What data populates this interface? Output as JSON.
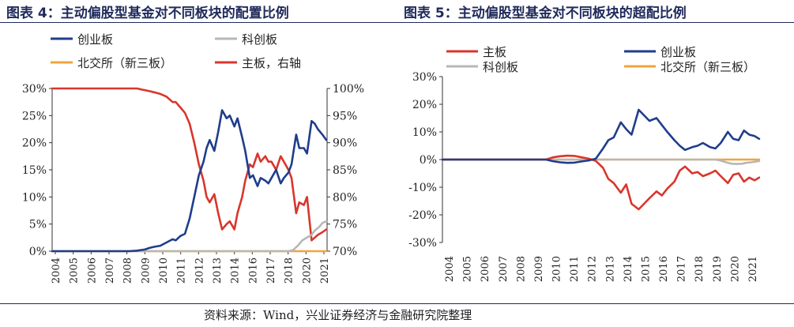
{
  "chart_data": [
    {
      "type": "line",
      "title": "图表 4：主动偏股型基金对不同板块的配置比例",
      "x_tick_labels": [
        "2004",
        "2005",
        "2006",
        "2007",
        "2008",
        "2009",
        "2010",
        "2011",
        "2012",
        "2013",
        "2014",
        "2016",
        "2017",
        "2018",
        "2020",
        "2021"
      ],
      "y_left_ticks": [
        "0%",
        "5%",
        "10%",
        "15%",
        "20%",
        "25%",
        "30%"
      ],
      "y_right_ticks": [
        "70%",
        "75%",
        "80%",
        "85%",
        "90%",
        "95%",
        "100%"
      ],
      "ylim_left": [
        0,
        30
      ],
      "ylim_right": [
        70,
        100
      ],
      "xlim": [
        2004,
        2021.8
      ],
      "series": [
        {
          "name": "创业板",
          "color": "#1f3d8c",
          "axis": "left",
          "x": [
            2004,
            2009.0,
            2009.5,
            2010.0,
            2010.3,
            2010.6,
            2011.0,
            2011.4,
            2011.8,
            2012.0,
            2012.3,
            2012.6,
            2012.9,
            2013.2,
            2013.5,
            2013.8,
            2014.0,
            2014.2,
            2014.5,
            2014.75,
            2015.0,
            2015.3,
            2015.5,
            2015.8,
            2016.0,
            2016.3,
            2016.5,
            2016.8,
            2017.0,
            2017.3,
            2017.5,
            2017.8,
            2018.0,
            2018.2,
            2018.5,
            2018.8,
            2019.0,
            2019.3,
            2019.5,
            2019.8,
            2020.0,
            2020.3,
            2020.5,
            2020.8,
            2021.0,
            2021.2,
            2021.5,
            2021.75
          ],
          "y": [
            0,
            0,
            0.1,
            0.3,
            0.6,
            0.8,
            1.0,
            1.6,
            2.2,
            2.0,
            2.8,
            3.2,
            6.0,
            10.0,
            14.0,
            16.5,
            19.0,
            20.5,
            18.5,
            22.0,
            26.0,
            24.5,
            25.0,
            23.0,
            24.5,
            21.0,
            18.5,
            13.5,
            14.0,
            12.0,
            13.5,
            13.0,
            12.5,
            13.5,
            15.0,
            12.5,
            13.5,
            14.5,
            16.0,
            21.5,
            19.0,
            19.0,
            18.0,
            24.0,
            23.5,
            22.5,
            21.5,
            20.5
          ]
        },
        {
          "name": "科创板",
          "color": "#b7b7b7",
          "axis": "left",
          "x": [
            2004,
            2019.3,
            2019.6,
            2019.9,
            2020.2,
            2020.5,
            2020.8,
            2021.0,
            2021.3,
            2021.5,
            2021.75
          ],
          "y": [
            0,
            0,
            0.2,
            1.0,
            2.0,
            2.5,
            3.0,
            3.8,
            4.5,
            5.2,
            5.5
          ]
        },
        {
          "name": "北交所（新三板）",
          "color": "#f0a43a",
          "axis": "left",
          "x": [
            2004,
            2021.75
          ],
          "y": [
            0,
            0
          ]
        },
        {
          "name": "主板，右轴",
          "color": "#d8362c",
          "axis": "right",
          "x": [
            2004,
            2009.0,
            2009.5,
            2009.8,
            2010.0,
            2010.3,
            2010.6,
            2011.0,
            2011.4,
            2011.8,
            2012.0,
            2012.3,
            2012.6,
            2012.9,
            2013.2,
            2013.5,
            2013.8,
            2014.0,
            2014.2,
            2014.5,
            2014.75,
            2015.0,
            2015.3,
            2015.5,
            2015.8,
            2016.0,
            2016.3,
            2016.5,
            2016.8,
            2017.0,
            2017.3,
            2017.5,
            2017.8,
            2018.0,
            2018.2,
            2018.5,
            2018.8,
            2019.0,
            2019.3,
            2019.5,
            2019.8,
            2020.0,
            2020.3,
            2020.5,
            2020.8,
            2021.0,
            2021.2,
            2021.5,
            2021.75
          ],
          "y": [
            100,
            100,
            100,
            99.8,
            99.7,
            99.5,
            99.3,
            99.0,
            98.5,
            97.5,
            97.5,
            96.5,
            95.5,
            93.5,
            90.0,
            86.0,
            83.0,
            80.0,
            79.0,
            80.5,
            77.0,
            74.0,
            75.0,
            75.5,
            74.0,
            77.0,
            80.0,
            83.0,
            86.0,
            85.5,
            88.0,
            86.5,
            87.5,
            86.5,
            86.5,
            85.0,
            87.5,
            86.5,
            85.0,
            83.5,
            77.0,
            79.0,
            78.5,
            80.0,
            72.0,
            72.5,
            73.0,
            73.5,
            74.0
          ]
        }
      ]
    },
    {
      "type": "line",
      "title": "图表 5：主动偏股型基金对不同板块的超配比例",
      "x_tick_labels": [
        "2004",
        "2005",
        "2006",
        "2007",
        "2008",
        "2009",
        "2010",
        "2011",
        "2012",
        "2013",
        "2014",
        "2015",
        "2016",
        "2017",
        "2018",
        "2019",
        "2020",
        "2021"
      ],
      "y_ticks": [
        "30%",
        "20%",
        "10%",
        "0%",
        "-10%",
        "-20%",
        "-30%"
      ],
      "ylim": [
        -30,
        30
      ],
      "xlim": [
        2004,
        2021.8
      ],
      "series": [
        {
          "name": "主板",
          "color": "#d8362c",
          "x": [
            2004,
            2009.8,
            2010.2,
            2010.6,
            2011.0,
            2011.4,
            2011.8,
            2012.2,
            2012.6,
            2013.0,
            2013.3,
            2013.6,
            2014.0,
            2014.3,
            2014.6,
            2015.0,
            2015.3,
            2015.6,
            2016.0,
            2016.3,
            2016.6,
            2017.0,
            2017.3,
            2017.6,
            2018.0,
            2018.3,
            2018.6,
            2019.0,
            2019.3,
            2019.6,
            2020.0,
            2020.3,
            2020.6,
            2020.9,
            2021.2,
            2021.5,
            2021.75
          ],
          "y": [
            0,
            0,
            0.8,
            1.2,
            1.4,
            1.3,
            0.8,
            0.3,
            -0.5,
            -3.0,
            -7.0,
            -8.5,
            -12.0,
            -9.0,
            -16.0,
            -18.0,
            -16.0,
            -14.0,
            -11.5,
            -13.0,
            -10.5,
            -8.0,
            -4.0,
            -2.5,
            -5.0,
            -4.5,
            -6.0,
            -5.0,
            -4.0,
            -6.0,
            -8.5,
            -5.5,
            -5.0,
            -8.0,
            -6.5,
            -7.5,
            -6.5
          ]
        },
        {
          "name": "创业板",
          "color": "#1f3d8c",
          "x": [
            2004,
            2009.8,
            2010.2,
            2010.6,
            2011.0,
            2011.4,
            2011.8,
            2012.2,
            2012.6,
            2013.0,
            2013.3,
            2013.6,
            2014.0,
            2014.3,
            2014.6,
            2015.0,
            2015.3,
            2015.6,
            2016.0,
            2016.3,
            2016.6,
            2017.0,
            2017.3,
            2017.6,
            2018.0,
            2018.3,
            2018.6,
            2019.0,
            2019.3,
            2019.6,
            2020.0,
            2020.3,
            2020.6,
            2020.9,
            2021.2,
            2021.5,
            2021.75
          ],
          "y": [
            0,
            0,
            -0.6,
            -1.0,
            -1.2,
            -1.1,
            -0.7,
            -0.3,
            0.3,
            4.0,
            7.0,
            8.0,
            13.5,
            11.0,
            9.0,
            18.0,
            16.0,
            14.0,
            15.0,
            12.5,
            10.0,
            7.0,
            5.0,
            3.5,
            4.5,
            5.0,
            6.0,
            4.5,
            4.0,
            6.0,
            10.0,
            7.5,
            7.0,
            10.5,
            9.0,
            8.5,
            7.5
          ]
        },
        {
          "name": "科创板",
          "color": "#b7b7b7",
          "x": [
            2004,
            2019.3,
            2019.6,
            2019.9,
            2020.2,
            2020.5,
            2020.8,
            2021.0,
            2021.3,
            2021.5,
            2021.75
          ],
          "y": [
            0,
            0,
            -0.4,
            -1.0,
            -1.5,
            -1.6,
            -1.5,
            -1.2,
            -1.0,
            -0.8,
            -0.5
          ]
        },
        {
          "name": "北交所（新三板）",
          "color": "#f0a43a",
          "x": [
            2004,
            2021.75
          ],
          "y": [
            0,
            0
          ]
        }
      ]
    }
  ],
  "source_note": "资料来源：Wind，兴业证券经济与金融研究院整理",
  "colors": {
    "title": "#1f2a5a",
    "rule": "#1f2a5a"
  }
}
